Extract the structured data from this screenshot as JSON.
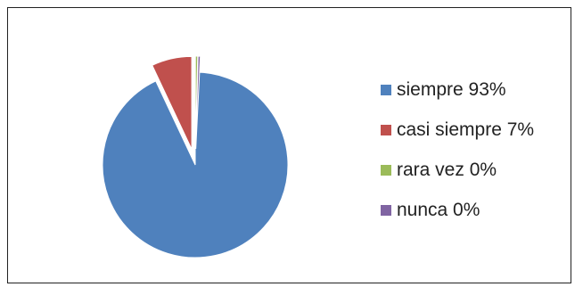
{
  "chart_data": {
    "type": "pie",
    "series": [
      {
        "label": "siempre 93%",
        "value": 93,
        "color": "#4f81bd"
      },
      {
        "label": "casi siempre 7%",
        "value": 7,
        "color": "#c0504d"
      },
      {
        "label": "rara vez 0%",
        "value": 0,
        "color": "#9bbb59"
      },
      {
        "label": "nunca 0%",
        "value": 0,
        "color": "#8064a2"
      }
    ],
    "exploded": true,
    "legend_position": "right"
  }
}
